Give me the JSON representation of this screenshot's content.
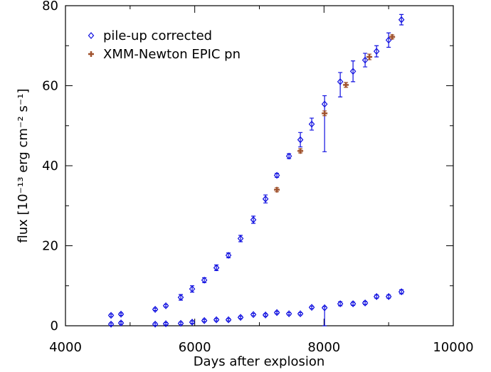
{
  "chart_data": {
    "type": "scatter",
    "xlabel": "Days after explosion",
    "ylabel": "flux [10⁻¹³ erg cm⁻² s⁻¹]",
    "xlim": [
      4000,
      10000
    ],
    "xticks": [
      4000,
      6000,
      8000,
      10000
    ],
    "xminorticks": [
      5000,
      7000,
      9000
    ],
    "ylim": [
      0,
      80
    ],
    "yticks": [
      0,
      20,
      40,
      60,
      80
    ],
    "yminorticks": [
      10,
      30,
      50,
      70
    ],
    "legend": "upper left",
    "series": [
      {
        "name": "pile-up corrected",
        "color": "#1010e0",
        "marker": "diamond",
        "x": [
          4705,
          4859,
          5388,
          5553,
          5784,
          5960,
          6148,
          6335,
          6522,
          6709,
          6907,
          7095,
          7271,
          7458,
          7634,
          7810,
          8009,
          8251,
          8449,
          8636,
          8813,
          9000,
          9198
        ],
        "values": [
          2.6,
          2.9,
          4.1,
          5.0,
          7.1,
          9.2,
          11.4,
          14.5,
          17.6,
          21.8,
          26.5,
          31.7,
          37.6,
          42.4,
          46.5,
          50.4,
          55.4,
          61.0,
          63.6,
          66.4,
          68.6,
          71.4,
          76.5
        ],
        "errors_low": [
          0.3,
          0.3,
          0.3,
          0.3,
          0.7,
          0.8,
          0.6,
          0.7,
          0.6,
          0.8,
          0.9,
          1.0,
          0.5,
          0.6,
          1.8,
          1.5,
          11.9,
          3.8,
          2.6,
          1.7,
          1.4,
          1.8,
          1.3
        ],
        "errors_high": [
          0.3,
          0.3,
          0.3,
          0.3,
          0.7,
          0.8,
          0.6,
          0.7,
          0.6,
          0.8,
          0.9,
          1.0,
          0.5,
          0.6,
          1.8,
          1.5,
          2.1,
          2.3,
          2.6,
          1.7,
          1.4,
          1.8,
          1.3
        ]
      },
      {
        "name": null,
        "color": "#1010e0",
        "marker": "diamond",
        "x": [
          4705,
          4859,
          5388,
          5553,
          5784,
          5960,
          6148,
          6335,
          6522,
          6709,
          6907,
          7095,
          7271,
          7458,
          7634,
          7810,
          8009,
          8251,
          8449,
          8636,
          8813,
          9000,
          9198
        ],
        "values": [
          0.4,
          0.7,
          0.4,
          0.5,
          0.6,
          0.9,
          1.3,
          1.5,
          1.5,
          2.1,
          2.8,
          2.7,
          3.3,
          3.0,
          3.0,
          4.6,
          4.5,
          5.5,
          5.5,
          5.7,
          7.3,
          7.3,
          8.5
        ],
        "errors_low": [
          0.3,
          0.3,
          0.3,
          0.3,
          0.3,
          0.3,
          0.3,
          0.3,
          0.3,
          0.3,
          0.3,
          0.3,
          0.3,
          0.3,
          0.3,
          0.3,
          4.5,
          0.5,
          0.4,
          0.4,
          0.4,
          0.4,
          0.5
        ],
        "errors_high": [
          0.3,
          0.3,
          0.3,
          0.3,
          0.3,
          0.3,
          0.3,
          0.3,
          0.3,
          0.3,
          0.3,
          0.3,
          0.3,
          0.3,
          0.3,
          0.3,
          0.3,
          0.5,
          0.4,
          0.4,
          0.4,
          0.4,
          0.5
        ]
      },
      {
        "name": "XMM-Newton EPIC pn",
        "color": "#a0522d",
        "marker": "plus",
        "x": [
          7271,
          7634,
          8009,
          8339,
          8702,
          9055
        ],
        "values": [
          34.0,
          43.7,
          53.1,
          60.2,
          67.2,
          72.2
        ],
        "errors_low": [
          0.5,
          0.5,
          0.6,
          0.6,
          0.7,
          0.5
        ],
        "errors_high": [
          0.5,
          0.5,
          0.6,
          0.6,
          0.7,
          0.5
        ]
      }
    ]
  }
}
